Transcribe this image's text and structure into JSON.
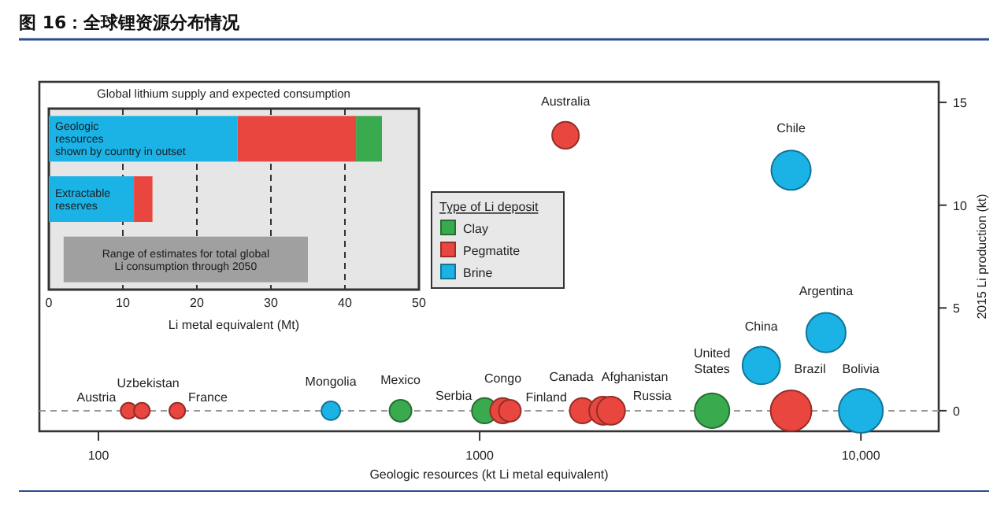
{
  "chart_data": [
    {
      "type": "bubble",
      "title": "图 16：全球锂资源分布情况",
      "xlabel": "Geologic resources (kt Li metal equivalent)",
      "ylabel": "2015 Li production (kt)",
      "legend_title": "Type of Li deposit",
      "legend": "top",
      "log": "x",
      "xlim": [
        70,
        16000
      ],
      "ylim": [
        -1,
        16
      ],
      "xticks": [
        100,
        1000,
        {
          "value": 10000,
          "label": "10,000"
        }
      ],
      "yticks": [
        0,
        5,
        10,
        15
      ],
      "ref_lines": [
        {
          "axis": "y",
          "value": 0,
          "color": "#999999",
          "line_style": "dashed"
        }
      ],
      "series": [
        {
          "name": "Clay",
          "color": "#3aaa4f",
          "x": [
            620,
            1030,
            4070
          ],
          "values": [
            0,
            0,
            0
          ],
          "sizes": [
            0.25,
            0.33,
            0.62
          ]
        },
        {
          "name": "Pegmatite",
          "color": "#e8463e",
          "x": [
            120,
            130,
            161,
            1150,
            1200,
            1860,
            2110,
            2210,
            6560,
            1680
          ],
          "values": [
            0,
            0,
            0,
            0,
            0,
            0,
            0,
            0,
            0,
            13.4
          ],
          "sizes": [
            0.13,
            0.13,
            0.13,
            0.33,
            0.25,
            0.33,
            0.41,
            0.41,
            0.86,
            0.37
          ]
        },
        {
          "name": "Brine",
          "color": "#1bb3e6",
          "x": [
            407,
            5480,
            8100,
            6560,
            10000
          ],
          "values": [
            0,
            2.2,
            3.8,
            11.7,
            0
          ],
          "sizes": [
            0.18,
            0.73,
            0.8,
            0.8,
            1
          ]
        }
      ],
      "annotations": [
        {
          "text": "Austria",
          "x": 120,
          "y": 0
        },
        {
          "text": "Uzbekistan",
          "x": 130,
          "y": 0
        },
        {
          "text": "France",
          "x": 161,
          "y": 0
        },
        {
          "text": "Mongolia",
          "x": 407,
          "y": 0
        },
        {
          "text": "Mexico",
          "x": 620,
          "y": 0
        },
        {
          "text": "Serbia",
          "x": 1030,
          "y": 0
        },
        {
          "text": "Congo",
          "x": 1150,
          "y": 0
        },
        {
          "text": "Finland",
          "x": 1200,
          "y": 0
        },
        {
          "text": "Canada",
          "x": 1860,
          "y": 0
        },
        {
          "text": "Afghanistan",
          "x": 2110,
          "y": 0
        },
        {
          "text": "Russia",
          "x": 2210,
          "y": 0
        },
        {
          "text": "United States",
          "x": 4070,
          "y": 0
        },
        {
          "text": "China",
          "x": 5480,
          "y": 2.2
        },
        {
          "text": "Brazil",
          "x": 6560,
          "y": 0
        },
        {
          "text": "Bolivia",
          "x": 10000,
          "y": 0
        },
        {
          "text": "Argentina",
          "x": 8100,
          "y": 3.8
        },
        {
          "text": "Chile",
          "x": 6560,
          "y": 11.7
        },
        {
          "text": "Australia",
          "x": 1680,
          "y": 13.4
        }
      ]
    },
    {
      "type": "bar",
      "orientation": "horizontal",
      "stacked": true,
      "title": "Global lithium supply and expected consumption",
      "xlabel": "Li metal equivalent (Mt)",
      "xlim": [
        0,
        50
      ],
      "xticks": [
        0,
        10,
        20,
        30,
        40,
        50
      ],
      "grid": "x",
      "categories": [
        "Geologic resources shown by country in outset",
        "Extractable reserves"
      ],
      "series": [
        {
          "color": "#1bb3e6",
          "values": [
            25.5,
            11.5
          ]
        },
        {
          "color": "#e8463e",
          "values": [
            16,
            2.5
          ]
        },
        {
          "color": "#3aaa4f",
          "values": [
            3.5,
            null
          ]
        }
      ],
      "bands": [
        {
          "axis": "x",
          "from": 2,
          "to": 35,
          "label": "Range of estimates for total global Li consumption through 2050",
          "color": "#a0a0a0"
        }
      ]
    }
  ]
}
